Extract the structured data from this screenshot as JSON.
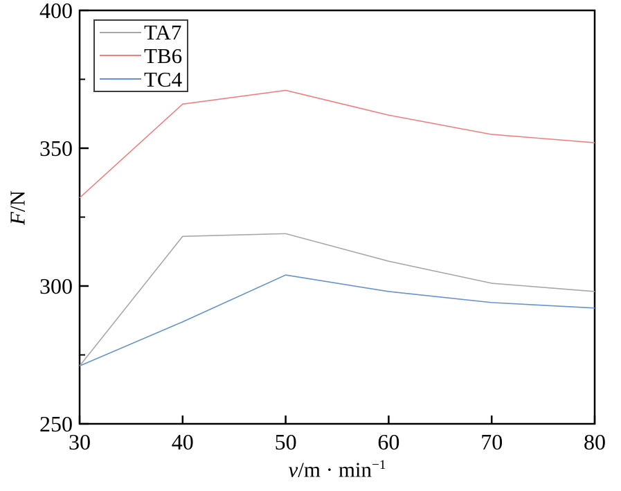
{
  "figure": {
    "background": "#ffffff",
    "axis_color": "#000000",
    "text_color": "#000000",
    "legend_border_color": "#3c3c3c"
  },
  "chart_data": {
    "type": "line",
    "title": "",
    "x": [
      30,
      40,
      50,
      60,
      70,
      80
    ],
    "series": [
      {
        "name": "TA7",
        "color": "#a8a8a8",
        "values": [
          271,
          318,
          319,
          309,
          301,
          298
        ]
      },
      {
        "name": "TB6",
        "color": "#f08080",
        "values": [
          332,
          366,
          371,
          362,
          355,
          352
        ]
      },
      {
        "name": "TC4",
        "color": "#6593cf",
        "values": [
          271,
          287,
          304,
          298,
          294,
          292
        ]
      }
    ],
    "xlabel": {
      "variable": "v",
      "rest": "/m · min",
      "superscript": "−1"
    },
    "ylabel": {
      "variable": "F",
      "rest": "/N"
    },
    "xlim": [
      30,
      80
    ],
    "ylim": [
      250,
      400
    ],
    "xticks": [
      30,
      40,
      50,
      60,
      70,
      80
    ],
    "yticks": [
      250,
      300,
      350,
      400
    ],
    "yticks_minor": [
      275,
      325,
      375
    ],
    "grid": false,
    "legend_position": "top-left"
  }
}
